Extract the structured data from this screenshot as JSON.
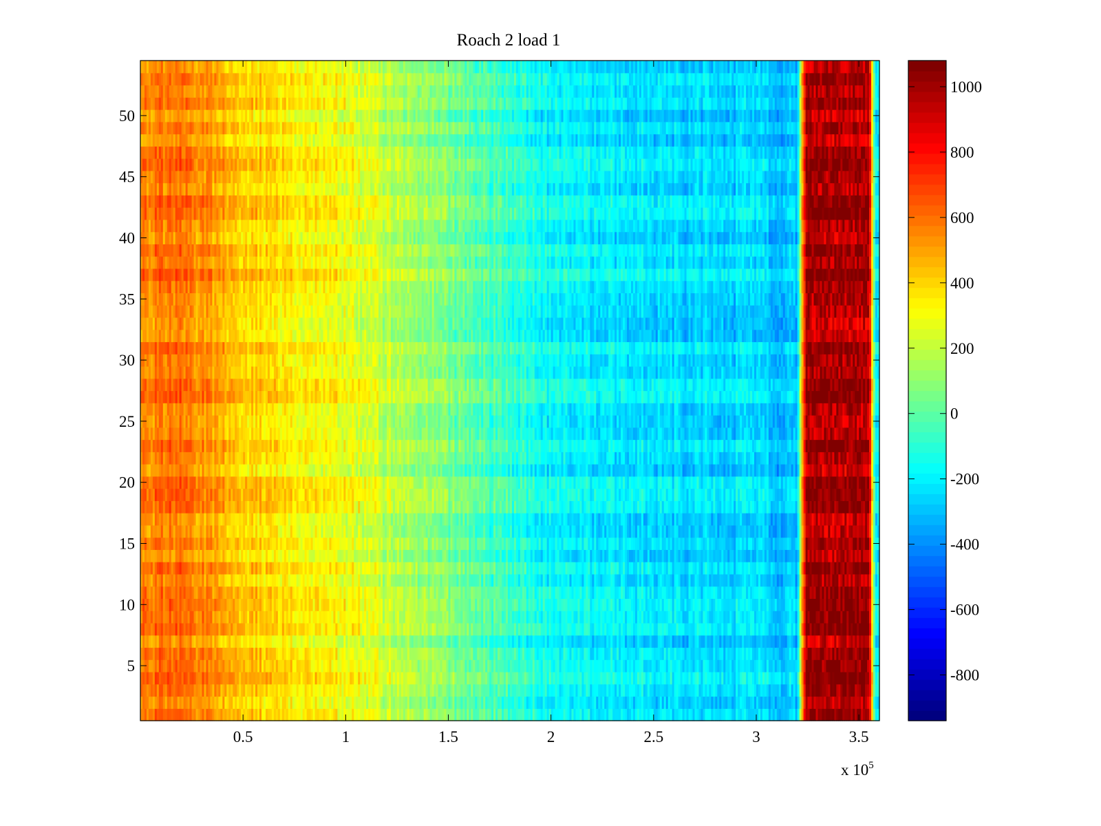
{
  "chart_data": {
    "type": "heatmap",
    "title": "Roach 2 load 1",
    "xlabel": "",
    "ylabel": "",
    "x_range": [
      0,
      360000
    ],
    "y_range": [
      0.5,
      54.5
    ],
    "x_ticks": [
      50000,
      100000,
      150000,
      200000,
      250000,
      300000,
      350000
    ],
    "x_tick_labels": [
      "0.5",
      "1",
      "1.5",
      "2",
      "2.5",
      "3",
      "3.5"
    ],
    "x_exponent_label": "x 10",
    "x_exponent_power": "5",
    "y_ticks": [
      5,
      10,
      15,
      20,
      25,
      30,
      35,
      40,
      45,
      50
    ],
    "y_tick_labels": [
      "5",
      "10",
      "15",
      "20",
      "25",
      "30",
      "35",
      "40",
      "45",
      "50"
    ],
    "rows": 54,
    "colormap": "jet",
    "colorbar": {
      "range": [
        -940,
        1080
      ],
      "ticks": [
        1000,
        800,
        600,
        400,
        200,
        0,
        -200,
        -400,
        -600,
        -800
      ],
      "tick_labels": [
        "1000",
        "800",
        "600",
        "400",
        "200",
        "0",
        "-200",
        "-400",
        "-600",
        "-800"
      ]
    },
    "value_profile": [
      {
        "x": 0,
        "value": 550
      },
      {
        "x": 20000,
        "value": 600
      },
      {
        "x": 50000,
        "value": 420
      },
      {
        "x": 100000,
        "value": 300
      },
      {
        "x": 150000,
        "value": 60
      },
      {
        "x": 200000,
        "value": -180
      },
      {
        "x": 250000,
        "value": -240
      },
      {
        "x": 300000,
        "value": -270
      },
      {
        "x": 320000,
        "value": -300
      },
      {
        "x": 324000,
        "value": 950
      },
      {
        "x": 355000,
        "value": 950
      },
      {
        "x": 358000,
        "value": -200
      },
      {
        "x": 360000,
        "value": -200
      }
    ]
  }
}
